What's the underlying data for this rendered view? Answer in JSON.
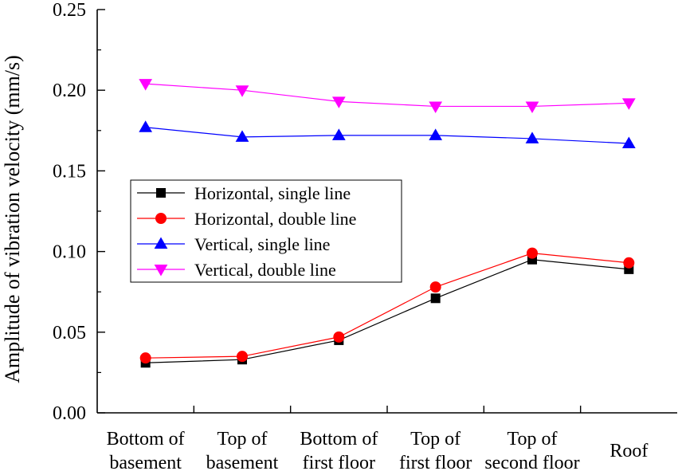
{
  "chart_data": {
    "type": "line",
    "title": "",
    "xlabel": "",
    "ylabel": "Amplitude of vibration velocity (mm/s)",
    "ylim": [
      0.0,
      0.25
    ],
    "yticks": [
      "0.00",
      "0.05",
      "0.10",
      "0.15",
      "0.20",
      "0.25"
    ],
    "categories": [
      [
        "Bottom of",
        "basement"
      ],
      [
        "Top of",
        "basement"
      ],
      [
        "Bottom of",
        "first floor"
      ],
      [
        "Top of",
        "first floor"
      ],
      [
        "Top of",
        "second floor"
      ],
      [
        "Roof"
      ]
    ],
    "grid": false,
    "legend_position": "center-left",
    "series": [
      {
        "name": "Horizontal, single line",
        "color": "#000000",
        "marker": "square",
        "values": [
          0.031,
          0.033,
          0.045,
          0.071,
          0.095,
          0.089
        ]
      },
      {
        "name": "Horizontal, double line",
        "color": "#ff0000",
        "marker": "circle",
        "values": [
          0.034,
          0.035,
          0.047,
          0.078,
          0.099,
          0.093
        ]
      },
      {
        "name": "Vertical, single line",
        "color": "#0000ff",
        "marker": "triangle-up",
        "values": [
          0.177,
          0.171,
          0.172,
          0.172,
          0.17,
          0.167
        ]
      },
      {
        "name": "Vertical, double line",
        "color": "#ff00ff",
        "marker": "triangle-down",
        "values": [
          0.204,
          0.2,
          0.193,
          0.19,
          0.19,
          0.192
        ]
      }
    ]
  }
}
